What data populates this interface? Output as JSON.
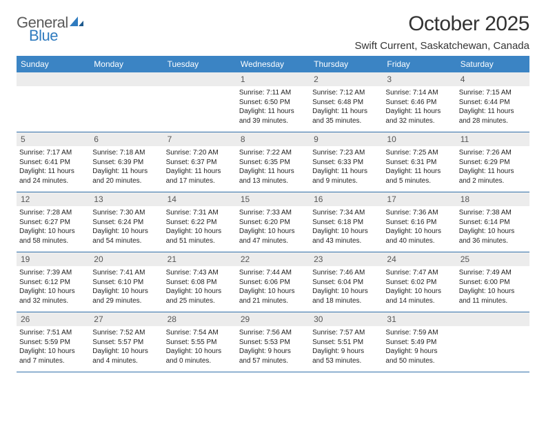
{
  "logo": {
    "text1": "General",
    "text2": "Blue"
  },
  "title": "October 2025",
  "location": "Swift Current, Saskatchewan, Canada",
  "colors": {
    "header_bg": "#3b84c4",
    "daynum_bg": "#ececec",
    "week_border": "#2f6ea8",
    "logo_gray": "#5a5a5a",
    "logo_blue": "#2f7bbf"
  },
  "weekdays": [
    "Sunday",
    "Monday",
    "Tuesday",
    "Wednesday",
    "Thursday",
    "Friday",
    "Saturday"
  ],
  "weeks": [
    [
      {
        "empty": true
      },
      {
        "empty": true
      },
      {
        "empty": true
      },
      {
        "num": "1",
        "sunrise": "Sunrise: 7:11 AM",
        "sunset": "Sunset: 6:50 PM",
        "day1": "Daylight: 11 hours",
        "day2": "and 39 minutes."
      },
      {
        "num": "2",
        "sunrise": "Sunrise: 7:12 AM",
        "sunset": "Sunset: 6:48 PM",
        "day1": "Daylight: 11 hours",
        "day2": "and 35 minutes."
      },
      {
        "num": "3",
        "sunrise": "Sunrise: 7:14 AM",
        "sunset": "Sunset: 6:46 PM",
        "day1": "Daylight: 11 hours",
        "day2": "and 32 minutes."
      },
      {
        "num": "4",
        "sunrise": "Sunrise: 7:15 AM",
        "sunset": "Sunset: 6:44 PM",
        "day1": "Daylight: 11 hours",
        "day2": "and 28 minutes."
      }
    ],
    [
      {
        "num": "5",
        "sunrise": "Sunrise: 7:17 AM",
        "sunset": "Sunset: 6:41 PM",
        "day1": "Daylight: 11 hours",
        "day2": "and 24 minutes."
      },
      {
        "num": "6",
        "sunrise": "Sunrise: 7:18 AM",
        "sunset": "Sunset: 6:39 PM",
        "day1": "Daylight: 11 hours",
        "day2": "and 20 minutes."
      },
      {
        "num": "7",
        "sunrise": "Sunrise: 7:20 AM",
        "sunset": "Sunset: 6:37 PM",
        "day1": "Daylight: 11 hours",
        "day2": "and 17 minutes."
      },
      {
        "num": "8",
        "sunrise": "Sunrise: 7:22 AM",
        "sunset": "Sunset: 6:35 PM",
        "day1": "Daylight: 11 hours",
        "day2": "and 13 minutes."
      },
      {
        "num": "9",
        "sunrise": "Sunrise: 7:23 AM",
        "sunset": "Sunset: 6:33 PM",
        "day1": "Daylight: 11 hours",
        "day2": "and 9 minutes."
      },
      {
        "num": "10",
        "sunrise": "Sunrise: 7:25 AM",
        "sunset": "Sunset: 6:31 PM",
        "day1": "Daylight: 11 hours",
        "day2": "and 5 minutes."
      },
      {
        "num": "11",
        "sunrise": "Sunrise: 7:26 AM",
        "sunset": "Sunset: 6:29 PM",
        "day1": "Daylight: 11 hours",
        "day2": "and 2 minutes."
      }
    ],
    [
      {
        "num": "12",
        "sunrise": "Sunrise: 7:28 AM",
        "sunset": "Sunset: 6:27 PM",
        "day1": "Daylight: 10 hours",
        "day2": "and 58 minutes."
      },
      {
        "num": "13",
        "sunrise": "Sunrise: 7:30 AM",
        "sunset": "Sunset: 6:24 PM",
        "day1": "Daylight: 10 hours",
        "day2": "and 54 minutes."
      },
      {
        "num": "14",
        "sunrise": "Sunrise: 7:31 AM",
        "sunset": "Sunset: 6:22 PM",
        "day1": "Daylight: 10 hours",
        "day2": "and 51 minutes."
      },
      {
        "num": "15",
        "sunrise": "Sunrise: 7:33 AM",
        "sunset": "Sunset: 6:20 PM",
        "day1": "Daylight: 10 hours",
        "day2": "and 47 minutes."
      },
      {
        "num": "16",
        "sunrise": "Sunrise: 7:34 AM",
        "sunset": "Sunset: 6:18 PM",
        "day1": "Daylight: 10 hours",
        "day2": "and 43 minutes."
      },
      {
        "num": "17",
        "sunrise": "Sunrise: 7:36 AM",
        "sunset": "Sunset: 6:16 PM",
        "day1": "Daylight: 10 hours",
        "day2": "and 40 minutes."
      },
      {
        "num": "18",
        "sunrise": "Sunrise: 7:38 AM",
        "sunset": "Sunset: 6:14 PM",
        "day1": "Daylight: 10 hours",
        "day2": "and 36 minutes."
      }
    ],
    [
      {
        "num": "19",
        "sunrise": "Sunrise: 7:39 AM",
        "sunset": "Sunset: 6:12 PM",
        "day1": "Daylight: 10 hours",
        "day2": "and 32 minutes."
      },
      {
        "num": "20",
        "sunrise": "Sunrise: 7:41 AM",
        "sunset": "Sunset: 6:10 PM",
        "day1": "Daylight: 10 hours",
        "day2": "and 29 minutes."
      },
      {
        "num": "21",
        "sunrise": "Sunrise: 7:43 AM",
        "sunset": "Sunset: 6:08 PM",
        "day1": "Daylight: 10 hours",
        "day2": "and 25 minutes."
      },
      {
        "num": "22",
        "sunrise": "Sunrise: 7:44 AM",
        "sunset": "Sunset: 6:06 PM",
        "day1": "Daylight: 10 hours",
        "day2": "and 21 minutes."
      },
      {
        "num": "23",
        "sunrise": "Sunrise: 7:46 AM",
        "sunset": "Sunset: 6:04 PM",
        "day1": "Daylight: 10 hours",
        "day2": "and 18 minutes."
      },
      {
        "num": "24",
        "sunrise": "Sunrise: 7:47 AM",
        "sunset": "Sunset: 6:02 PM",
        "day1": "Daylight: 10 hours",
        "day2": "and 14 minutes."
      },
      {
        "num": "25",
        "sunrise": "Sunrise: 7:49 AM",
        "sunset": "Sunset: 6:00 PM",
        "day1": "Daylight: 10 hours",
        "day2": "and 11 minutes."
      }
    ],
    [
      {
        "num": "26",
        "sunrise": "Sunrise: 7:51 AM",
        "sunset": "Sunset: 5:59 PM",
        "day1": "Daylight: 10 hours",
        "day2": "and 7 minutes."
      },
      {
        "num": "27",
        "sunrise": "Sunrise: 7:52 AM",
        "sunset": "Sunset: 5:57 PM",
        "day1": "Daylight: 10 hours",
        "day2": "and 4 minutes."
      },
      {
        "num": "28",
        "sunrise": "Sunrise: 7:54 AM",
        "sunset": "Sunset: 5:55 PM",
        "day1": "Daylight: 10 hours",
        "day2": "and 0 minutes."
      },
      {
        "num": "29",
        "sunrise": "Sunrise: 7:56 AM",
        "sunset": "Sunset: 5:53 PM",
        "day1": "Daylight: 9 hours",
        "day2": "and 57 minutes."
      },
      {
        "num": "30",
        "sunrise": "Sunrise: 7:57 AM",
        "sunset": "Sunset: 5:51 PM",
        "day1": "Daylight: 9 hours",
        "day2": "and 53 minutes."
      },
      {
        "num": "31",
        "sunrise": "Sunrise: 7:59 AM",
        "sunset": "Sunset: 5:49 PM",
        "day1": "Daylight: 9 hours",
        "day2": "and 50 minutes."
      },
      {
        "empty": true
      }
    ]
  ]
}
